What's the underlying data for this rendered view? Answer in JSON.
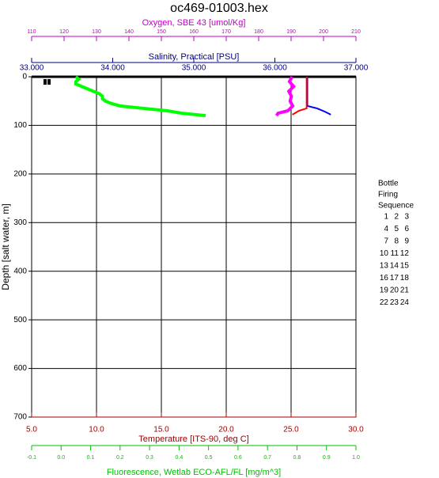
{
  "chart_data": {
    "type": "profile",
    "title": "oc469-01003.hex",
    "depth_axis": {
      "label": "Depth [salt water, m]",
      "ylim": [
        0,
        700
      ],
      "yticks": [
        0,
        100,
        200,
        300,
        400,
        500,
        600,
        700
      ],
      "grid": true
    },
    "oxygen": {
      "label": "Oxygen, SBE 43 [umol/Kg]",
      "color": "#ff00ff",
      "axis_color": "#c000c0",
      "xlim": [
        110,
        210
      ],
      "xticks": [
        110,
        120,
        130,
        140,
        150,
        160,
        170,
        180,
        190,
        200,
        210
      ],
      "depth": [
        0,
        10,
        20,
        30,
        40,
        50,
        60,
        70,
        75,
        80
      ],
      "values": [
        190.3,
        189.5,
        190.8,
        189.3,
        190.1,
        189.7,
        190.5,
        189.0,
        186.0,
        185.5
      ]
    },
    "salinity": {
      "label": "Salinity, Practical [PSU]",
      "color": "#0000ff",
      "axis_color": "#000080",
      "xlim": [
        33,
        37
      ],
      "xticks": [
        {
          "value": 33,
          "label": "33.000"
        },
        {
          "value": 34,
          "label": "34.000"
        },
        {
          "value": 35,
          "label": "35.000"
        },
        {
          "value": 36,
          "label": "36.000"
        },
        {
          "value": 37,
          "label": "37.000"
        }
      ],
      "depth": [
        0,
        60,
        65,
        72,
        78
      ],
      "values": [
        36.4,
        36.4,
        36.52,
        36.62,
        36.69
      ]
    },
    "temperature": {
      "label": "Temperature [ITS-90, deg C]",
      "color": "#ff0000",
      "axis_color": "#a00000",
      "xlim": [
        5,
        30
      ],
      "xticks": [
        {
          "value": 5,
          "label": "5.0"
        },
        {
          "value": 10,
          "label": "10.0"
        },
        {
          "value": 15,
          "label": "15.0"
        },
        {
          "value": 20,
          "label": "20.0"
        },
        {
          "value": 25,
          "label": "25.0"
        },
        {
          "value": 30,
          "label": "30.0"
        }
      ],
      "grid": true,
      "depth": [
        0,
        65,
        70,
        78
      ],
      "values": [
        26.2,
        26.2,
        25.6,
        25.1
      ]
    },
    "fluorescence": {
      "label": "Fluorescence, Wetlab ECO-AFL/FL [mg/m^3]",
      "color": "#00ff00",
      "axis_color": "#00c000",
      "xlim": [
        -0.1,
        1.0
      ],
      "xticks": [
        -0.1,
        {
          "value": 0,
          "label": "0.0"
        },
        0.1,
        0.2,
        0.3,
        0.4,
        0.5,
        0.6,
        0.7,
        0.8,
        0.9,
        {
          "value": 1.0,
          "label": "1.0"
        }
      ],
      "depth": [
        0,
        5,
        10,
        15,
        20,
        25,
        30,
        35,
        40,
        45,
        50,
        55,
        60,
        65,
        70,
        75,
        80
      ],
      "values": [
        0.05,
        0.06,
        0.05,
        0.05,
        0.07,
        0.09,
        0.11,
        0.13,
        0.14,
        0.14,
        0.15,
        0.17,
        0.2,
        0.28,
        0.36,
        0.41,
        0.49
      ]
    },
    "bottle_legend": {
      "title": [
        "Bottle",
        "Firing",
        "Sequence"
      ],
      "rows": [
        [
          "1",
          "2",
          "3"
        ],
        [
          "4",
          "5",
          "6"
        ],
        [
          "7",
          "8",
          "9"
        ],
        [
          "10",
          "11",
          "12"
        ],
        [
          "13",
          "14",
          "15"
        ],
        [
          "16",
          "17",
          "18"
        ],
        [
          "19",
          "20",
          "21"
        ],
        [
          "22",
          "23",
          "24"
        ]
      ]
    }
  }
}
